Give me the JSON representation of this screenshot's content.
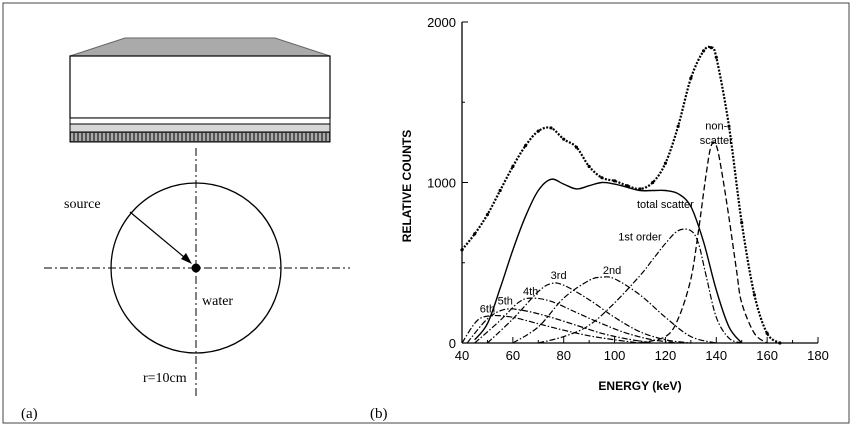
{
  "panel_a": {
    "label": "(a)",
    "source_label": "source",
    "water_label": "water",
    "radius_label": "r=10cm"
  },
  "panel_b": {
    "label": "(b)"
  },
  "chart_data": {
    "type": "line",
    "xlabel": "ENERGY (keV)",
    "ylabel": "RELATIVE COUNTS",
    "xlim": [
      40,
      180
    ],
    "ylim": [
      0,
      2000
    ],
    "xticks": [
      40,
      60,
      80,
      100,
      120,
      140,
      160,
      180
    ],
    "yticks": [
      0,
      1000,
      2000
    ],
    "grid": false,
    "annotations": [
      {
        "text": "non-",
        "x": 140,
        "y": 1330
      },
      {
        "text": "scatter",
        "x": 140,
        "y": 1240
      },
      {
        "text": "total scatter",
        "x": 120,
        "y": 840
      },
      {
        "text": "1st order",
        "x": 110,
        "y": 640
      },
      {
        "text": "2nd",
        "x": 99,
        "y": 430
      },
      {
        "text": "3rd",
        "x": 78,
        "y": 400
      },
      {
        "text": "4th",
        "x": 67,
        "y": 300
      },
      {
        "text": "5th",
        "x": 57,
        "y": 240
      },
      {
        "text": "6th",
        "x": 50,
        "y": 190
      }
    ],
    "series": [
      {
        "name": "",
        "style": "dotted-thick",
        "x": [
          40,
          45,
          50,
          55,
          60,
          65,
          70,
          75,
          80,
          85,
          90,
          95,
          100,
          105,
          110,
          115,
          120,
          125,
          130,
          135,
          138,
          140,
          145,
          150,
          155,
          160,
          165
        ],
        "y": [
          580,
          680,
          800,
          950,
          1100,
          1230,
          1320,
          1340,
          1270,
          1220,
          1100,
          1030,
          1010,
          980,
          960,
          1000,
          1120,
          1350,
          1650,
          1820,
          1840,
          1780,
          1350,
          750,
          300,
          60,
          0
        ]
      },
      {
        "name": "total scatter",
        "style": "solid",
        "x": [
          45,
          50,
          55,
          60,
          65,
          70,
          75,
          80,
          85,
          90,
          95,
          100,
          105,
          110,
          115,
          120,
          125,
          130,
          135,
          140,
          145,
          150
        ],
        "y": [
          20,
          120,
          340,
          580,
          790,
          950,
          1020,
          990,
          960,
          980,
          1000,
          990,
          970,
          950,
          950,
          950,
          930,
          850,
          630,
          330,
          100,
          0
        ]
      },
      {
        "name": "non-scatter",
        "style": "dashed",
        "x": [
          110,
          120,
          125,
          130,
          133,
          136,
          138,
          140,
          142,
          145,
          148,
          150,
          155,
          160
        ],
        "y": [
          0,
          40,
          150,
          400,
          700,
          1050,
          1230,
          1230,
          1080,
          780,
          450,
          250,
          60,
          0
        ]
      },
      {
        "name": "1st order",
        "style": "dash-dot",
        "x": [
          70,
          80,
          90,
          100,
          110,
          115,
          120,
          125,
          130,
          133,
          136,
          140,
          145,
          150
        ],
        "y": [
          0,
          40,
          110,
          250,
          420,
          520,
          620,
          700,
          700,
          620,
          420,
          160,
          30,
          0
        ]
      },
      {
        "name": "2nd",
        "style": "dash-dot",
        "x": [
          60,
          70,
          80,
          90,
          95,
          100,
          110,
          120,
          130,
          140
        ],
        "y": [
          0,
          100,
          280,
          390,
          410,
          400,
          300,
          160,
          40,
          0
        ]
      },
      {
        "name": "3rd",
        "style": "dash-dot",
        "x": [
          50,
          60,
          70,
          75,
          80,
          90,
          100,
          110,
          120,
          130
        ],
        "y": [
          0,
          150,
          320,
          370,
          360,
          270,
          160,
          70,
          20,
          0
        ]
      },
      {
        "name": "4th",
        "style": "dash-dot",
        "x": [
          45,
          55,
          62,
          67,
          75,
          85,
          95,
          105,
          115,
          125
        ],
        "y": [
          0,
          140,
          250,
          280,
          260,
          190,
          120,
          60,
          20,
          0
        ]
      },
      {
        "name": "5th",
        "style": "dash-dot",
        "x": [
          42,
          50,
          57,
          65,
          75,
          85,
          95,
          105,
          115
        ],
        "y": [
          0,
          150,
          210,
          200,
          160,
          110,
          60,
          25,
          0
        ]
      },
      {
        "name": "6th",
        "style": "dash-dot",
        "x": [
          40,
          46,
          52,
          60,
          70,
          80,
          90,
          100,
          110
        ],
        "y": [
          0,
          140,
          170,
          160,
          120,
          80,
          45,
          20,
          0
        ]
      }
    ]
  }
}
